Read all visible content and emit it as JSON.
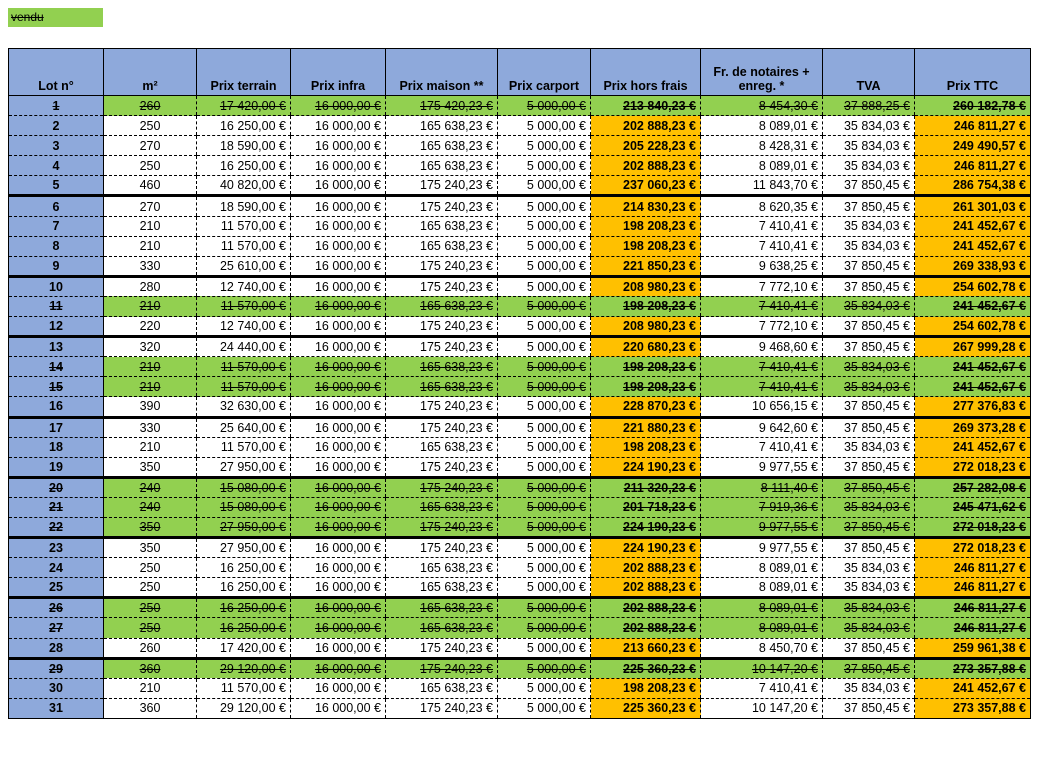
{
  "legend": {
    "sold_label": "vendu"
  },
  "table": {
    "headers": [
      "Lot n°",
      "m²",
      "Prix terrain",
      "Prix infra",
      "Prix maison **",
      "Prix carport",
      "Prix hors frais",
      "Fr. de notaires + enreg. *",
      "TVA",
      "Prix TTC"
    ],
    "rows": [
      {
        "sold": true,
        "cells": [
          "1",
          "260",
          "17 420,00 €",
          "16 000,00 €",
          "175 420,23 €",
          "5 000,00 €",
          "213 840,23 €",
          "8 454,30 €",
          "37 888,25 €",
          "260 182,78 €"
        ]
      },
      {
        "sold": false,
        "cells": [
          "2",
          "250",
          "16 250,00 €",
          "16 000,00 €",
          "165 638,23 €",
          "5 000,00 €",
          "202 888,23 €",
          "8 089,01 €",
          "35 834,03 €",
          "246 811,27 €"
        ]
      },
      {
        "sold": false,
        "cells": [
          "3",
          "270",
          "18 590,00 €",
          "16 000,00 €",
          "165 638,23 €",
          "5 000,00 €",
          "205 228,23 €",
          "8 428,31 €",
          "35 834,03 €",
          "249 490,57 €"
        ]
      },
      {
        "sold": false,
        "cells": [
          "4",
          "250",
          "16 250,00 €",
          "16 000,00 €",
          "165 638,23 €",
          "5 000,00 €",
          "202 888,23 €",
          "8 089,01 €",
          "35 834,03 €",
          "246 811,27 €"
        ]
      },
      {
        "sold": false,
        "cells": [
          "5",
          "460",
          "40 820,00 €",
          "16 000,00 €",
          "175 240,23 €",
          "5 000,00 €",
          "237 060,23 €",
          "11 843,70 €",
          "37 850,45 €",
          "286 754,38 €"
        ]
      },
      {
        "sold": false,
        "cells": [
          "6",
          "270",
          "18 590,00 €",
          "16 000,00 €",
          "175 240,23 €",
          "5 000,00 €",
          "214 830,23 €",
          "8 620,35 €",
          "37 850,45 €",
          "261 301,03 €"
        ]
      },
      {
        "sold": false,
        "cells": [
          "7",
          "210",
          "11 570,00 €",
          "16 000,00 €",
          "165 638,23 €",
          "5 000,00 €",
          "198 208,23 €",
          "7 410,41 €",
          "35 834,03 €",
          "241 452,67 €"
        ]
      },
      {
        "sold": false,
        "cells": [
          "8",
          "210",
          "11 570,00 €",
          "16 000,00 €",
          "165 638,23 €",
          "5 000,00 €",
          "198 208,23 €",
          "7 410,41 €",
          "35 834,03 €",
          "241 452,67 €"
        ]
      },
      {
        "sold": false,
        "cells": [
          "9",
          "330",
          "25 610,00 €",
          "16 000,00 €",
          "175 240,23 €",
          "5 000,00 €",
          "221 850,23 €",
          "9 638,25 €",
          "37 850,45 €",
          "269 338,93 €"
        ]
      },
      {
        "sold": false,
        "cells": [
          "10",
          "280",
          "12 740,00 €",
          "16 000,00 €",
          "175 240,23 €",
          "5 000,00 €",
          "208 980,23 €",
          "7 772,10 €",
          "37 850,45 €",
          "254 602,78 €"
        ]
      },
      {
        "sold": true,
        "cells": [
          "11",
          "210",
          "11 570,00 €",
          "16 000,00 €",
          "165 638,23 €",
          "5 000,00 €",
          "198 208,23 €",
          "7 410,41 €",
          "35 834,03 €",
          "241 452,67 €"
        ]
      },
      {
        "sold": false,
        "cells": [
          "12",
          "220",
          "12 740,00 €",
          "16 000,00 €",
          "175 240,23 €",
          "5 000,00 €",
          "208 980,23 €",
          "7 772,10 €",
          "37 850,45 €",
          "254 602,78 €"
        ]
      },
      {
        "sold": false,
        "cells": [
          "13",
          "320",
          "24 440,00 €",
          "16 000,00 €",
          "175 240,23 €",
          "5 000,00 €",
          "220 680,23 €",
          "9 468,60 €",
          "37 850,45 €",
          "267 999,28 €"
        ]
      },
      {
        "sold": true,
        "cells": [
          "14",
          "210",
          "11 570,00 €",
          "16 000,00 €",
          "165 638,23 €",
          "5 000,00 €",
          "198 208,23 €",
          "7 410,41 €",
          "35 834,03 €",
          "241 452,67 €"
        ]
      },
      {
        "sold": true,
        "cells": [
          "15",
          "210",
          "11 570,00 €",
          "16 000,00 €",
          "165 638,23 €",
          "5 000,00 €",
          "198 208,23 €",
          "7 410,41 €",
          "35 834,03 €",
          "241 452,67 €"
        ]
      },
      {
        "sold": false,
        "cells": [
          "16",
          "390",
          "32 630,00 €",
          "16 000,00 €",
          "175 240,23 €",
          "5 000,00 €",
          "228 870,23 €",
          "10 656,15 €",
          "37 850,45 €",
          "277 376,83 €"
        ]
      },
      {
        "sold": false,
        "cells": [
          "17",
          "330",
          "25 640,00 €",
          "16 000,00 €",
          "175 240,23 €",
          "5 000,00 €",
          "221 880,23 €",
          "9 642,60 €",
          "37 850,45 €",
          "269 373,28 €"
        ]
      },
      {
        "sold": false,
        "cells": [
          "18",
          "210",
          "11 570,00 €",
          "16 000,00 €",
          "165 638,23 €",
          "5 000,00 €",
          "198 208,23 €",
          "7 410,41 €",
          "35 834,03 €",
          "241 452,67 €"
        ]
      },
      {
        "sold": false,
        "cells": [
          "19",
          "350",
          "27 950,00 €",
          "16 000,00 €",
          "175 240,23 €",
          "5 000,00 €",
          "224 190,23 €",
          "9 977,55 €",
          "37 850,45 €",
          "272 018,23 €"
        ]
      },
      {
        "sold": true,
        "cells": [
          "20",
          "240",
          "15 080,00 €",
          "16 000,00 €",
          "175 240,23 €",
          "5 000,00 €",
          "211 320,23 €",
          "8 111,40 €",
          "37 850,45 €",
          "257 282,08 €"
        ]
      },
      {
        "sold": true,
        "cells": [
          "21",
          "240",
          "15 080,00 €",
          "16 000,00 €",
          "165 638,23 €",
          "5 000,00 €",
          "201 718,23 €",
          "7 919,36 €",
          "35 834,03 €",
          "245 471,62 €"
        ]
      },
      {
        "sold": true,
        "cells": [
          "22",
          "350",
          "27 950,00 €",
          "16 000,00 €",
          "175 240,23 €",
          "5 000,00 €",
          "224 190,23 €",
          "9 977,55 €",
          "37 850,45 €",
          "272 018,23 €"
        ]
      },
      {
        "sold": false,
        "cells": [
          "23",
          "350",
          "27 950,00 €",
          "16 000,00 €",
          "175 240,23 €",
          "5 000,00 €",
          "224 190,23 €",
          "9 977,55 €",
          "37 850,45 €",
          "272 018,23 €"
        ]
      },
      {
        "sold": false,
        "cells": [
          "24",
          "250",
          "16 250,00 €",
          "16 000,00 €",
          "165 638,23 €",
          "5 000,00 €",
          "202 888,23 €",
          "8 089,01 €",
          "35 834,03 €",
          "246 811,27 €"
        ]
      },
      {
        "sold": false,
        "cells": [
          "25",
          "250",
          "16 250,00 €",
          "16 000,00 €",
          "165 638,23 €",
          "5 000,00 €",
          "202 888,23 €",
          "8 089,01 €",
          "35 834,03 €",
          "246 811,27 €"
        ]
      },
      {
        "sold": true,
        "cells": [
          "26",
          "250",
          "16 250,00 €",
          "16 000,00 €",
          "165 638,23 €",
          "5 000,00 €",
          "202 888,23 €",
          "8 089,01 €",
          "35 834,03 €",
          "246 811,27 €"
        ]
      },
      {
        "sold": true,
        "cells": [
          "27",
          "250",
          "16 250,00 €",
          "16 000,00 €",
          "165 638,23 €",
          "5 000,00 €",
          "202 888,23 €",
          "8 089,01 €",
          "35 834,03 €",
          "246 811,27 €"
        ]
      },
      {
        "sold": false,
        "cells": [
          "28",
          "260",
          "17 420,00 €",
          "16 000,00 €",
          "175 240,23 €",
          "5 000,00 €",
          "213 660,23 €",
          "8 450,70 €",
          "37 850,45 €",
          "259 961,38 €"
        ]
      },
      {
        "sold": true,
        "cells": [
          "29",
          "360",
          "29 120,00 €",
          "16 000,00 €",
          "175 240,23 €",
          "5 000,00 €",
          "225 360,23 €",
          "10 147,20 €",
          "37 850,45 €",
          "273 357,88 €"
        ]
      },
      {
        "sold": false,
        "cells": [
          "30",
          "210",
          "11 570,00 €",
          "16 000,00 €",
          "165 638,23 €",
          "5 000,00 €",
          "198 208,23 €",
          "7 410,41 €",
          "35 834,03 €",
          "241 452,67 €"
        ]
      },
      {
        "sold": false,
        "cells": [
          "31",
          "360",
          "29 120,00 €",
          "16 000,00 €",
          "175 240,23 €",
          "5 000,00 €",
          "225 360,23 €",
          "10 147,20 €",
          "37 850,45 €",
          "273 357,88 €"
        ]
      }
    ]
  }
}
